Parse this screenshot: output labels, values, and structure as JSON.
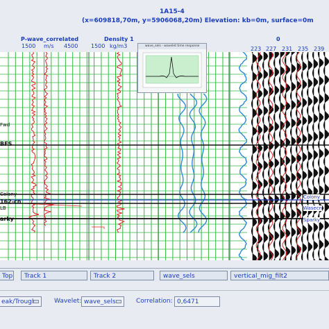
{
  "header": {
    "title": "1A15-4",
    "subtitle": "(x=609818,70m, y=5906068,20m) Elevation: kb=0m, surface=0m",
    "col_zero": "0"
  },
  "track1": {
    "curve_name": "P-wave_correlated",
    "scale_min": "1500",
    "scale_unit": "m/s",
    "scale_max": "4500"
  },
  "track2": {
    "curve_name": "Density 1",
    "scale_min": "1500",
    "scale_unit": "kg/m3"
  },
  "trace_ticks": [
    "223",
    "227",
    "231",
    "235",
    "239"
  ],
  "inset": {
    "title": "wave_sels - wavelet time response"
  },
  "depth_markers": [
    {
      "label": "Fwd",
      "style": "normal"
    },
    {
      "label": "BFS",
      "style": "big"
    },
    {
      "label": "Colony",
      "style": "normal"
    },
    {
      "label": "162-cn",
      "style": "big"
    },
    {
      "label": "LB",
      "style": "normal"
    },
    {
      "label": "arky",
      "style": "big"
    }
  ],
  "right_markers": [
    "Colony",
    "Wasecn",
    "Sparky"
  ],
  "tracks_bar": {
    "top_label": "Top",
    "track1_label": "Track 1",
    "track2_label": "Track 2",
    "track3_label": "wave_sels",
    "track4_label": "vertical_mig_filt2"
  },
  "bottom_bar": {
    "peak_label": "eak/Trough",
    "wavelet_label": "Wavelet:",
    "wavelet_value": "wave_sels",
    "correlation_label": "Correlation:",
    "correlation_value": "0,6471"
  },
  "colors": {
    "grid_green": "#2fb93f",
    "curve_red": "#e02020",
    "wavelet_blue": "#2a8ad8",
    "label_blue": "#1a3bbd"
  }
}
